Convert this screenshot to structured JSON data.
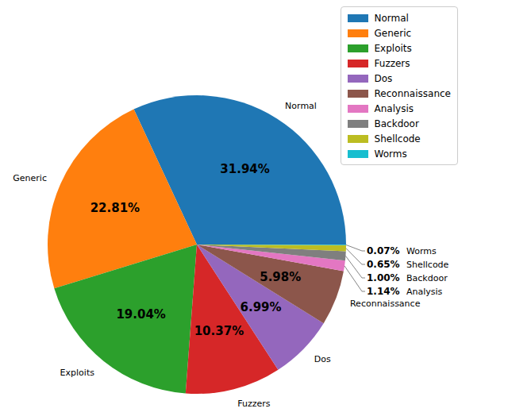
{
  "chart_data": {
    "type": "pie",
    "categories": [
      "Normal",
      "Generic",
      "Exploits",
      "Fuzzers",
      "Dos",
      "Reconnaissance",
      "Analysis",
      "Backdoor",
      "Shellcode",
      "Worms"
    ],
    "values": [
      31.94,
      22.81,
      19.04,
      10.37,
      6.99,
      5.98,
      1.14,
      1.0,
      0.65,
      0.07
    ],
    "value_labels": [
      "31.94%",
      "22.81%",
      "19.04%",
      "10.37%",
      "6.99%",
      "5.98%",
      "1.14%",
      "1.00%",
      "0.65%",
      "0.07%"
    ],
    "colors": [
      "#1f77b4",
      "#ff7f0e",
      "#2ca02c",
      "#d62728",
      "#9467bd",
      "#8c564b",
      "#e377c2",
      "#7f7f7f",
      "#bcbd22",
      "#17becf"
    ],
    "data_labels": true,
    "legend": "upper right"
  }
}
